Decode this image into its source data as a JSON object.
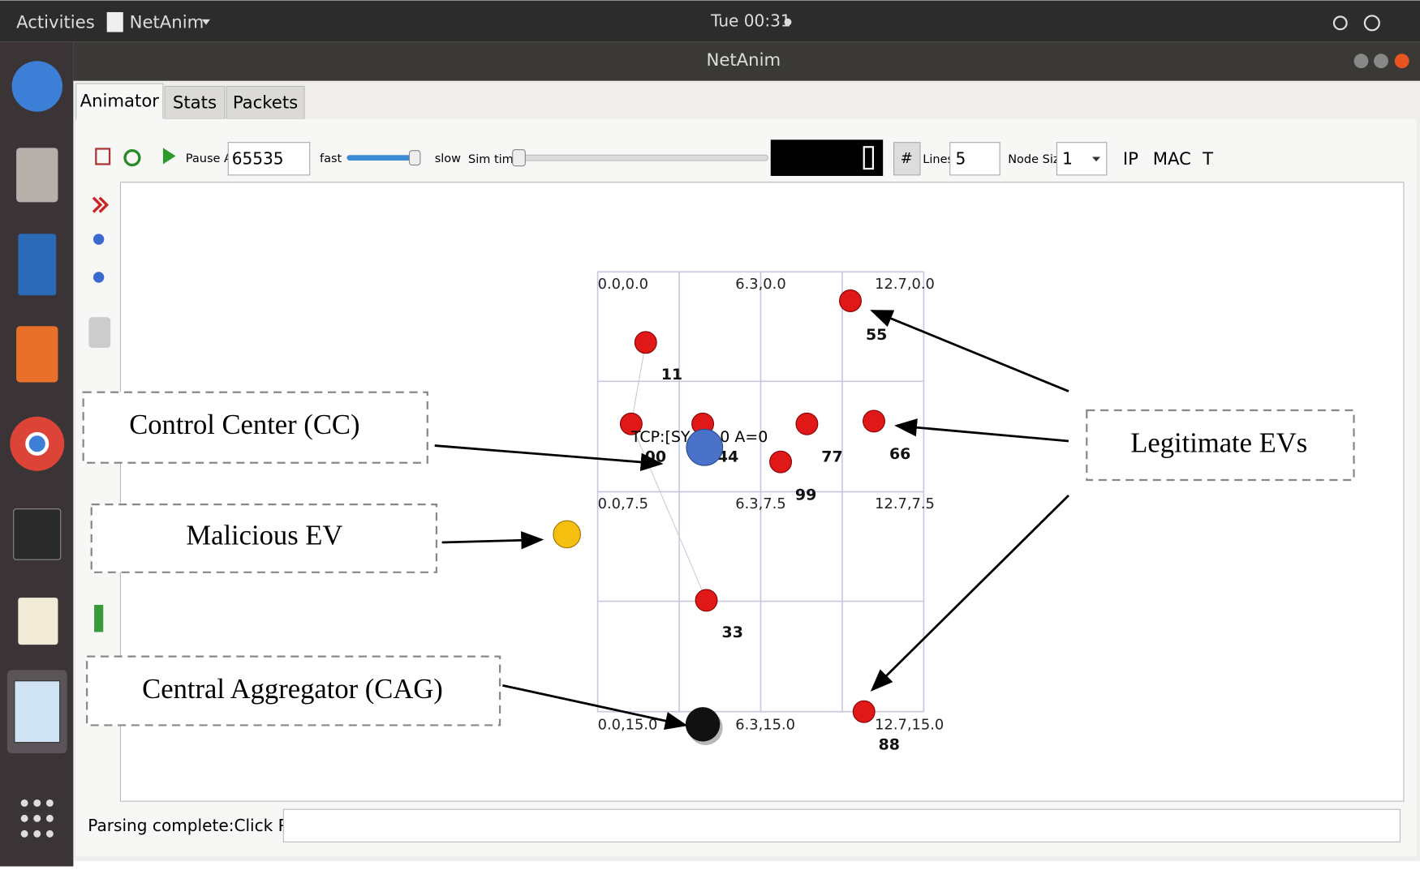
{
  "top_bar": {
    "activities": "Activities",
    "app_menu": "NetAnim",
    "clock": "Tue 00:31"
  },
  "window": {
    "title": "NetAnim"
  },
  "tabs": [
    "Animator",
    "Stats",
    "Packets"
  ],
  "toolbar": {
    "pause_at_label": "Pause At",
    "pause_at_value": "65535",
    "fast": "fast",
    "slow": "slow",
    "sim_time": "Sim time",
    "lines_label": "Lines",
    "lines_value": "5",
    "node_size_label": "Node Size",
    "node_size_value": "1",
    "ip": "IP",
    "mac": "MAC",
    "t": "T"
  },
  "grid_labels": [
    "0.0,0.0",
    "6.3,0.0",
    "12.7,0.0",
    "0.0,7.5",
    "6.3,7.5",
    "12.7,7.5",
    "0.0,15.0",
    "6.3,15.0",
    "12.7,15.0"
  ],
  "nodes": [
    {
      "label": "11"
    },
    {
      "label": "55"
    },
    {
      "label": "66"
    },
    {
      "label": "77"
    },
    {
      "label": "99"
    },
    {
      "label": "44"
    },
    {
      "label": "00"
    },
    {
      "label": "33"
    },
    {
      "label": "88"
    }
  ],
  "packet_label": [
    "TCP:[SY",
    "0 A=0"
  ],
  "annotations": {
    "control_center": "Control Center (CC)",
    "malicious": "Malicious EV",
    "aggregator": "Central Aggregator (CAG)",
    "legitimate": "Legitimate EVs"
  },
  "status": "Parsing complete:Click Play"
}
